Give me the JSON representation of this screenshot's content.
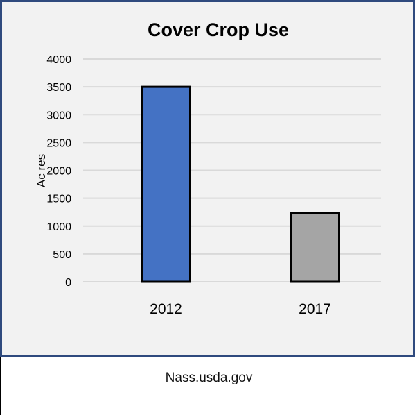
{
  "chart_data": {
    "type": "bar",
    "title": "Cover Crop Use",
    "xlabel": "",
    "ylabel": "Ac res",
    "categories": [
      "2012",
      "2017"
    ],
    "values": [
      3500,
      1230
    ],
    "bar_colors": [
      "#4472C4",
      "#A5A5A5"
    ],
    "ylim": [
      0,
      4000
    ],
    "yticks": [
      0,
      500,
      1000,
      1500,
      2000,
      2500,
      3000,
      3500,
      4000
    ],
    "grid": true,
    "legend": "none",
    "background": "#F2F2F2",
    "frame_color": "#2F4A7E",
    "gridline_color": "#D9D9D9"
  },
  "source": {
    "text": "Nass.usda.gov"
  }
}
